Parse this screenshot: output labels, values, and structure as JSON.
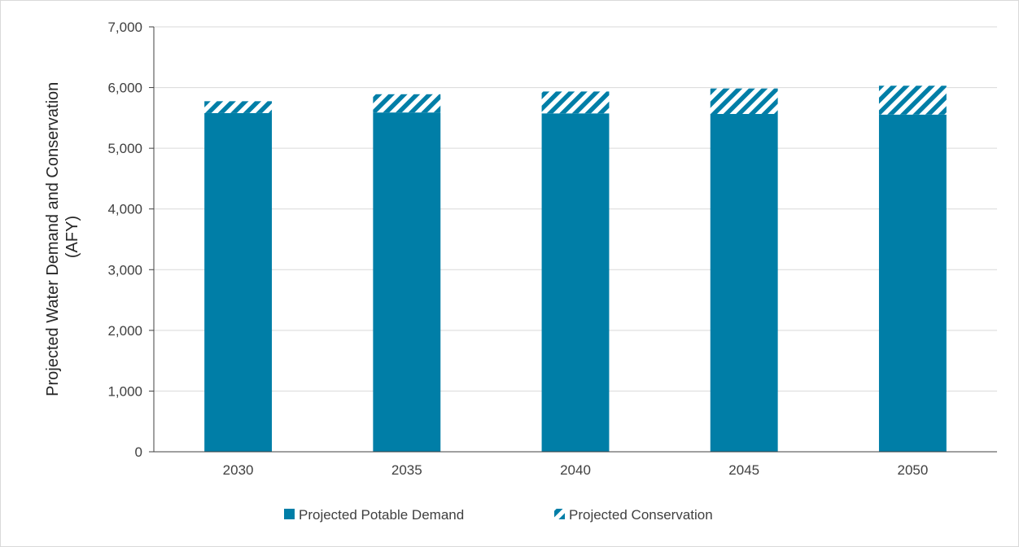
{
  "chart_data": {
    "type": "bar",
    "stacked": true,
    "categories": [
      "2030",
      "2035",
      "2040",
      "2045",
      "2050"
    ],
    "series": [
      {
        "name": "Projected Potable Demand",
        "values": [
          5580,
          5590,
          5575,
          5565,
          5555
        ],
        "color": "#007ea7",
        "pattern": "solid"
      },
      {
        "name": "Projected Conservation",
        "values": [
          195,
          300,
          360,
          420,
          475
        ],
        "color": "#007ea7",
        "pattern": "diagonal-stripes"
      }
    ],
    "title": "",
    "xlabel": "",
    "ylabel_lines": [
      "Projected Water Demand and Conservation",
      "(AFY)"
    ],
    "ylim": [
      0,
      7000
    ],
    "yticks": [
      0,
      1000,
      2000,
      3000,
      4000,
      5000,
      6000,
      7000
    ],
    "ytick_labels": [
      "0",
      "1,000",
      "2,000",
      "3,000",
      "4,000",
      "5,000",
      "6,000",
      "7,000"
    ],
    "grid": true,
    "legend_position": "bottom"
  }
}
